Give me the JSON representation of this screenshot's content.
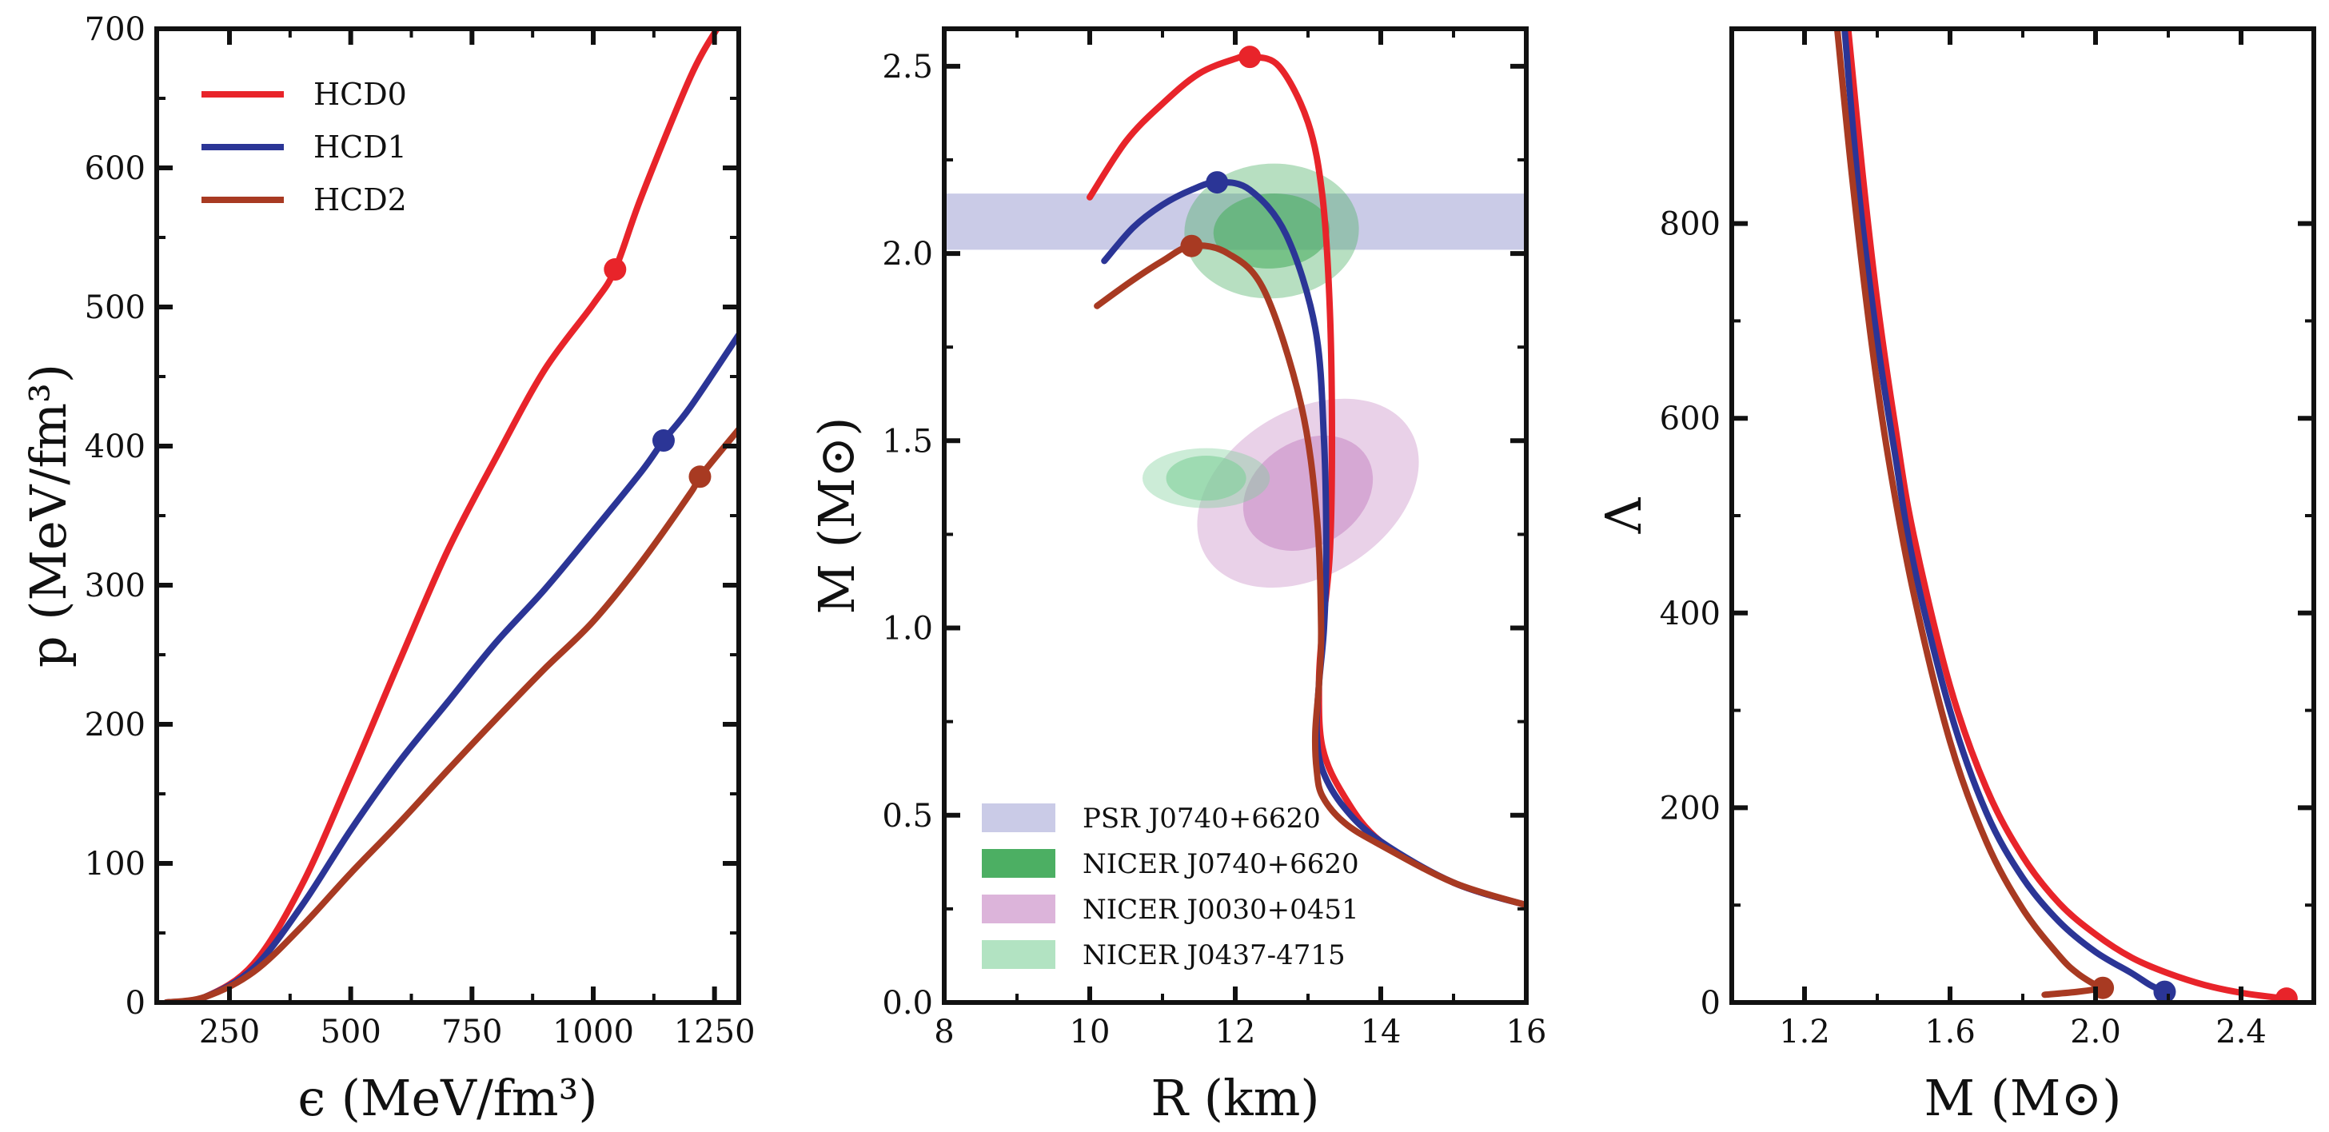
{
  "chart_data": [
    {
      "type": "line",
      "panel": "eos",
      "xlabel": "ϵ (MeV/fm³)",
      "ylabel": "p (MeV/fm³)",
      "xlim": [
        100,
        1300
      ],
      "ylim": [
        0,
        700
      ],
      "xticks": [
        250,
        500,
        750,
        1000,
        1250
      ],
      "yticks": [
        0,
        100,
        200,
        300,
        400,
        500,
        600,
        700
      ],
      "legend_position": "top-left",
      "series": [
        {
          "name": "HCD0",
          "color": "#e8242a",
          "x": [
            120,
            200,
            300,
            400,
            500,
            600,
            700,
            800,
            900,
            1000,
            1045,
            1100,
            1200,
            1255
          ],
          "y": [
            0,
            4,
            28,
            85,
            163,
            245,
            325,
            392,
            455,
            502,
            527,
            580,
            665,
            700
          ],
          "max_point": [
            1045,
            527
          ]
        },
        {
          "name": "HCD1",
          "color": "#2b3596",
          "x": [
            120,
            200,
            300,
            400,
            500,
            600,
            700,
            800,
            900,
            1000,
            1100,
            1145,
            1200,
            1300
          ],
          "y": [
            0,
            4,
            25,
            70,
            124,
            173,
            216,
            259,
            297,
            339,
            382,
            404,
            428,
            480
          ],
          "max_point": [
            1145,
            404
          ]
        },
        {
          "name": "HCD2",
          "color": "#a83a22",
          "x": [
            120,
            200,
            300,
            400,
            500,
            600,
            700,
            800,
            900,
            1000,
            1100,
            1200,
            1220,
            1300
          ],
          "y": [
            0,
            4,
            22,
            55,
            93,
            129,
            167,
            204,
            240,
            274,
            317,
            366,
            378,
            412
          ],
          "max_point": [
            1220,
            378
          ]
        }
      ]
    },
    {
      "type": "line",
      "panel": "mass-radius",
      "xlabel": "R (km)",
      "ylabel": "M (M⊙)",
      "xlim": [
        8,
        16
      ],
      "ylim": [
        0,
        2.6
      ],
      "xticks": [
        8,
        10,
        12,
        14,
        16
      ],
      "yticks": [
        0.0,
        0.5,
        1.0,
        1.5,
        2.0,
        2.5
      ],
      "legend_position": "bottom-left",
      "series": [
        {
          "name": "HCD0",
          "color": "#e8242a",
          "x": [
            10.0,
            10.5,
            11.0,
            11.5,
            12.0,
            12.2,
            12.6,
            13.0,
            13.2,
            13.3,
            13.33,
            13.3,
            13.2,
            13.15,
            13.2,
            13.5,
            14.0,
            15.0,
            16.0
          ],
          "y": [
            2.15,
            2.3,
            2.4,
            2.48,
            2.52,
            2.525,
            2.5,
            2.35,
            2.15,
            1.85,
            1.5,
            1.2,
            1.0,
            0.85,
            0.68,
            0.55,
            0.43,
            0.32,
            0.26
          ],
          "max_point": [
            12.2,
            2.525
          ]
        },
        {
          "name": "HCD1",
          "color": "#2b3596",
          "x": [
            10.2,
            10.6,
            11.0,
            11.4,
            11.75,
            12.2,
            12.7,
            13.1,
            13.22,
            13.25,
            13.22,
            13.15,
            13.12,
            13.2,
            13.5,
            14.0,
            15.0,
            16.0
          ],
          "y": [
            1.98,
            2.07,
            2.13,
            2.17,
            2.19,
            2.17,
            2.05,
            1.8,
            1.5,
            1.2,
            1.0,
            0.85,
            0.72,
            0.62,
            0.52,
            0.43,
            0.32,
            0.26
          ],
          "max_point": [
            11.75,
            2.19
          ]
        },
        {
          "name": "HCD2",
          "color": "#a83a22",
          "x": [
            10.1,
            10.6,
            11.0,
            11.4,
            11.9,
            12.4,
            12.9,
            13.12,
            13.18,
            13.15,
            13.1,
            13.12,
            13.2,
            13.5,
            14.0,
            15.0,
            16.0
          ],
          "y": [
            1.86,
            1.93,
            1.98,
            2.02,
            2.0,
            1.9,
            1.6,
            1.3,
            1.0,
            0.85,
            0.72,
            0.62,
            0.55,
            0.48,
            0.42,
            0.32,
            0.26
          ],
          "max_point": [
            11.4,
            2.02
          ]
        }
      ],
      "constraints": [
        {
          "name": "PSR J0740+6620",
          "kind": "band",
          "x_range": [
            8,
            16
          ],
          "y_range": [
            2.01,
            2.16
          ],
          "color": "#b8b9df"
        },
        {
          "name": "NICER J0740+6620",
          "kind": "ellipse",
          "center": [
            12.5,
            2.06
          ],
          "radius_data": [
            2.4,
            0.18
          ],
          "inner_radius_data": [
            1.6,
            0.1
          ],
          "tilt": "slight",
          "color": "#4caf63"
        },
        {
          "name": "NICER J0030+0451",
          "kind": "ellipse",
          "center": [
            13.0,
            1.36
          ],
          "radius_data": [
            3.3,
            0.22
          ],
          "inner_radius_data": [
            1.9,
            0.14
          ],
          "tilt": "rising",
          "color": "#c98cc6"
        },
        {
          "name": "NICER J0437-4715",
          "kind": "ellipse",
          "center": [
            11.6,
            1.4
          ],
          "radius_data": [
            1.75,
            0.08
          ],
          "inner_radius_data": [
            1.1,
            0.06
          ],
          "tilt": "none",
          "color": "#7fd09a"
        }
      ]
    },
    {
      "type": "line",
      "panel": "tidal",
      "xlabel": "M (M⊙)",
      "ylabel": "Λ",
      "xlim": [
        1.0,
        2.6
      ],
      "ylim": [
        0,
        1000
      ],
      "xticks": [
        1.2,
        1.6,
        2.0,
        2.4
      ],
      "xtick_labels": [
        "1.2",
        "1.6",
        "2.0",
        "2.4"
      ],
      "yticks": [
        0,
        200,
        400,
        600,
        800
      ],
      "series": [
        {
          "name": "HCD0",
          "color": "#e8242a",
          "x": [
            1.32,
            1.36,
            1.4,
            1.45,
            1.5,
            1.6,
            1.7,
            1.8,
            1.9,
            2.0,
            2.1,
            2.2,
            2.3,
            2.4,
            2.5,
            2.525
          ],
          "y": [
            1000,
            850,
            720,
            590,
            480,
            325,
            220,
            150,
            102,
            70,
            46,
            30,
            18,
            10,
            5,
            4
          ],
          "max_point": [
            2.525,
            4
          ]
        },
        {
          "name": "HCD1",
          "color": "#2b3596",
          "x": [
            1.31,
            1.35,
            1.4,
            1.45,
            1.5,
            1.6,
            1.7,
            1.8,
            1.9,
            2.0,
            2.1,
            2.15,
            2.19
          ],
          "y": [
            1000,
            830,
            680,
            560,
            450,
            300,
            195,
            128,
            83,
            52,
            30,
            18,
            11
          ],
          "max_point": [
            2.19,
            11
          ]
        },
        {
          "name": "HCD2",
          "color": "#a83a22",
          "x": [
            1.29,
            1.33,
            1.38,
            1.43,
            1.5,
            1.6,
            1.7,
            1.8,
            1.9,
            1.95,
            2.0,
            2.02,
            1.95,
            1.86
          ],
          "y": [
            1000,
            850,
            690,
            560,
            420,
            268,
            165,
            96,
            48,
            30,
            18,
            15,
            11,
            8
          ],
          "max_point": [
            2.02,
            15
          ]
        }
      ]
    }
  ]
}
